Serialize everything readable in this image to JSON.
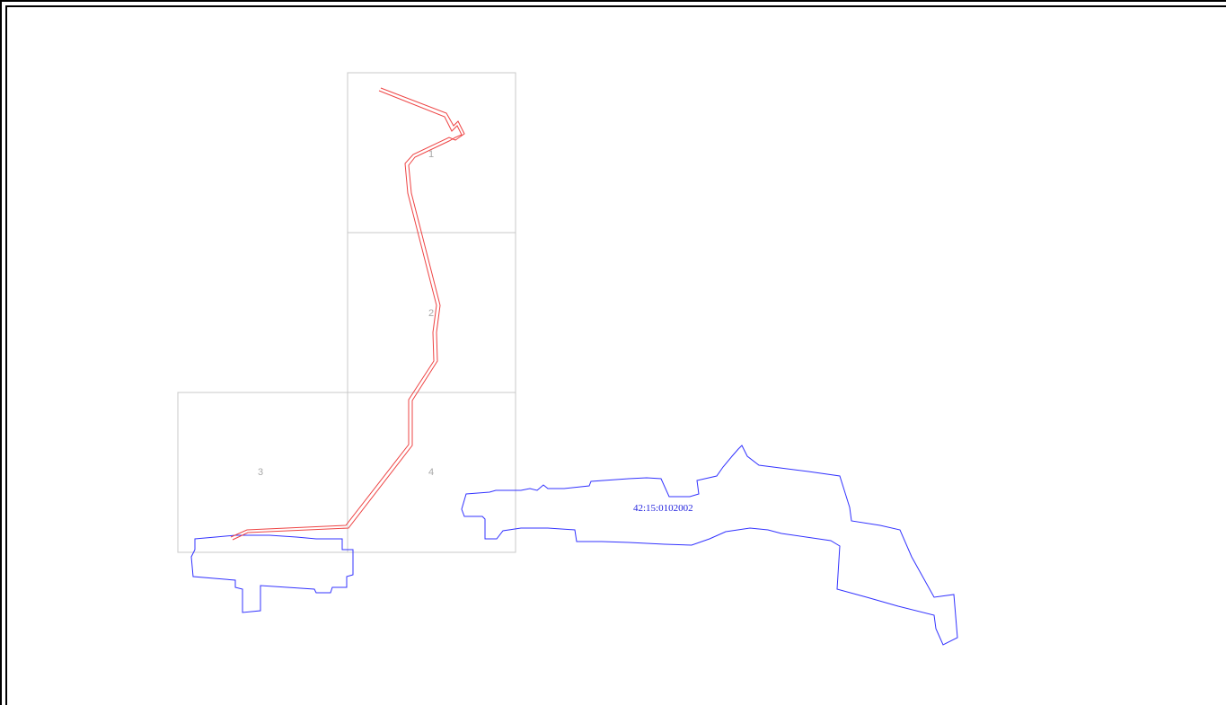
{
  "map": {
    "sheets": [
      {
        "label": "1"
      },
      {
        "label": "2"
      },
      {
        "label": "3"
      },
      {
        "label": "4"
      }
    ],
    "parcel": {
      "cadastral_number": "42:15:0102002"
    },
    "colors": {
      "sheet_border": "#c8c8c8",
      "sheet_label": "#a8a8a8",
      "route": "#ee4444",
      "parcel_outline": "#3333ff",
      "frame": "#000000"
    }
  }
}
